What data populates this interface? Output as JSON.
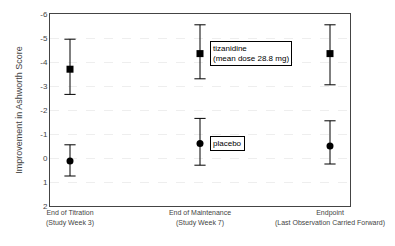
{
  "chart_data": {
    "type": "scatter",
    "ylabel": "Improvement in Ashworth Score",
    "categories": [
      "End of Titration\n(Study Week 3)",
      "End of Maintenance\n(Study Week 7)",
      "Endpoint\n(Last Observation Carried Forward)"
    ],
    "series": [
      {
        "name": "tizanidine\n(mean dose 28.8 mg)",
        "color": "black",
        "marker": "square",
        "values": [
          -3.7,
          -4.35,
          -4.35
        ],
        "ci_low": [
          -2.65,
          -3.3,
          -3.05
        ],
        "ci_high": [
          -4.95,
          -5.55,
          -5.55
        ]
      },
      {
        "name": "placebo",
        "color": "black",
        "marker": "circle",
        "values": [
          0.12,
          -0.6,
          -0.5
        ],
        "ci_low": [
          0.75,
          0.3,
          0.25
        ],
        "ci_high": [
          -0.55,
          -1.65,
          -1.55
        ]
      }
    ],
    "ylim": [
      2.0,
      -6.0
    ],
    "yticks": [
      2,
      1,
      0,
      -1,
      -2,
      -3,
      -4,
      -5,
      -6
    ],
    "grid": true
  }
}
